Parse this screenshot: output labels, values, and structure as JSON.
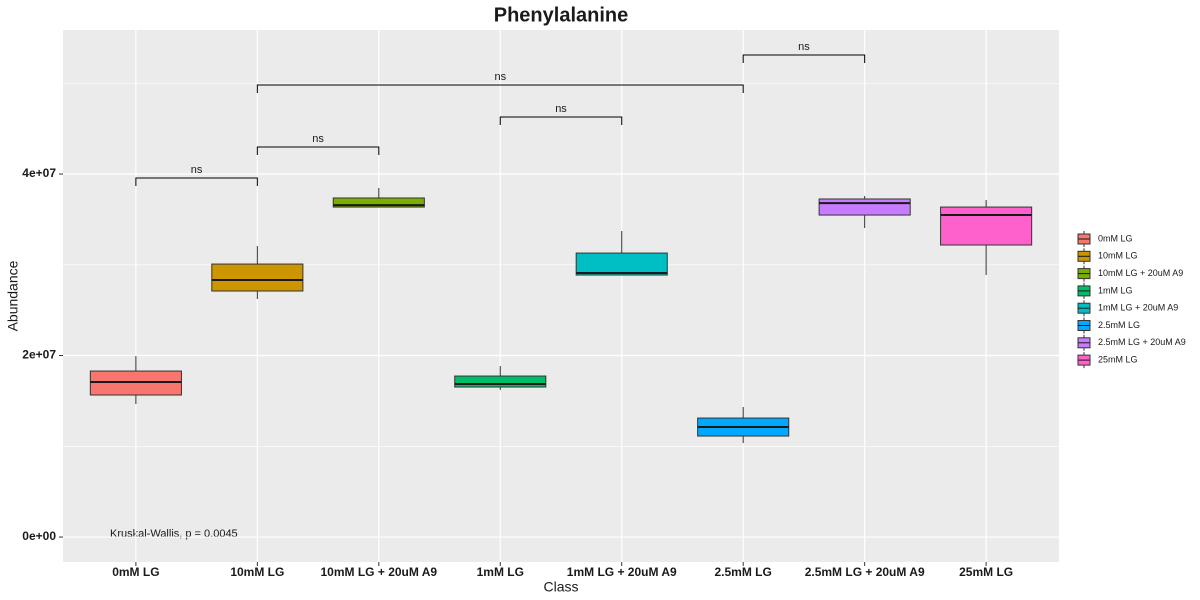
{
  "chart_data": {
    "type": "boxplot",
    "title": "Phenylalanine",
    "x_label": "Class",
    "y_label": "Abundance",
    "annotation": "Kruskal-Wallis, p = 0.0045",
    "categories": [
      "0mM LG",
      "10mM LG",
      "10mM LG + 20uM A9",
      "1mM LG",
      "1mM LG + 20uM A9",
      "2.5mM LG",
      "2.5mM LG + 20uM A9",
      "25mM LG"
    ],
    "series": [
      {
        "name": "0mM LG",
        "color": "#F8766D",
        "min": 14660000,
        "q1": 15650000,
        "median": 17080000,
        "q3": 18290000,
        "max": 19940000
      },
      {
        "name": "10mM LG",
        "color": "#CD9600",
        "min": 26230000,
        "q1": 27110000,
        "median": 28320000,
        "q3": 30080000,
        "max": 32070000
      },
      {
        "name": "10mM LG + 20uM A9",
        "color": "#7CAE00",
        "min": 36360000,
        "q1": 36360000,
        "median": 36580000,
        "q3": 37360000,
        "max": 38460000
      },
      {
        "name": "1mM LG",
        "color": "#00BE67",
        "min": 16200000,
        "q1": 16530000,
        "median": 16860000,
        "q3": 17740000,
        "max": 18840000
      },
      {
        "name": "1mM LG + 20uM A9",
        "color": "#00BFC4",
        "min": 28870000,
        "q1": 28870000,
        "median": 29090000,
        "q3": 31290000,
        "max": 33720000
      },
      {
        "name": "2.5mM LG",
        "color": "#00A9FF",
        "min": 10360000,
        "q1": 11130000,
        "median": 12120000,
        "q3": 13110000,
        "max": 14330000
      },
      {
        "name": "2.5mM LG + 20uM A9",
        "color": "#C77CFF",
        "min": 34050000,
        "q1": 35480000,
        "median": 36800000,
        "q3": 37250000,
        "max": 37580000
      },
      {
        "name": "25mM LG",
        "color": "#FF61CC",
        "min": 28870000,
        "q1": 32180000,
        "median": 35480000,
        "q3": 36360000,
        "max": 37140000
      }
    ],
    "comparisons": [
      {
        "from": 0,
        "to": 1,
        "y": 39560000,
        "label": "ns"
      },
      {
        "from": 1,
        "to": 2,
        "y": 42980000,
        "label": "ns"
      },
      {
        "from": 3,
        "to": 4,
        "y": 46280000,
        "label": "ns"
      },
      {
        "from": 1,
        "to": 5,
        "y": 49810000,
        "label": "ns"
      },
      {
        "from": 5,
        "to": 6,
        "y": 53110000,
        "label": "ns"
      }
    ],
    "ylim": [
      -2750000,
      55870000
    ],
    "yticks": [
      {
        "value": 0,
        "label": "0e+00"
      },
      {
        "value": 20000000,
        "label": "2e+07"
      },
      {
        "value": 40000000,
        "label": "4e+07"
      }
    ],
    "grid": true,
    "legend_position": "right"
  }
}
